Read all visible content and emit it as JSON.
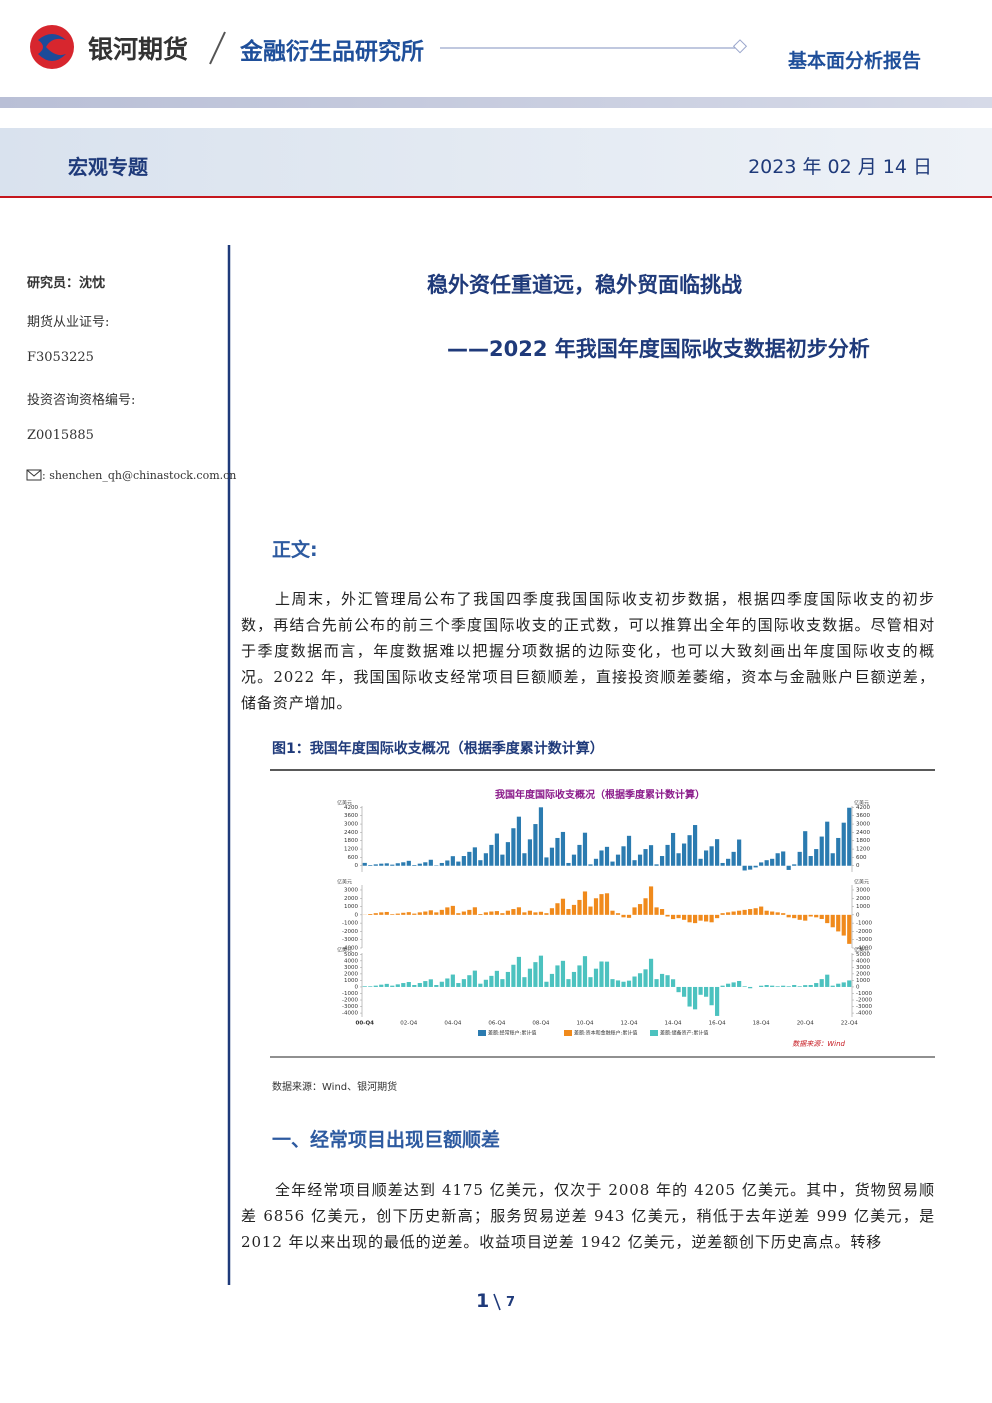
{
  "header": {
    "company": "银河期货",
    "institute": "金融衍生品研究所",
    "report_type": "基本面分析报告"
  },
  "band": {
    "category": "宏观专题",
    "date": "2023 年 02 月 14 日"
  },
  "sidebar": {
    "researcher": "研究员：沈忱",
    "license_label": "期货从业证号:",
    "license": "F3053225",
    "advisor_label": "投资咨询资格编号:",
    "advisor": "Z0015885",
    "email": ": shenchen_qh@chinastock.com.cn"
  },
  "document": {
    "title": "稳外资任重道远，稳外贸面临挑战",
    "subtitle": "——2022 年我国年度国际收支数据初步分析",
    "section_label": "正文:",
    "paragraphs": [
      "上周末，外汇管理局公布了我国四季度我国国际收支初步数据，根据四季度国际收支的初步数，再结合先前公布的前三个季度国际收支的正式数，可以推算出全年的国际收支数据。尽管相对于季度数据而言，年度数据难以把握分项数据的边际变化，也可以大致刻画出年度国际收支的概况。2022 年，我国国际收支经常项目巨额顺差，直接投资顺差萎缩，资本与金融账户巨额逆差，储备资产增加。"
    ],
    "figure_caption": "图1：我国年度国际收支概况（根据季度累计数计算）",
    "figure_source": "数据来源：Wind、银河期货",
    "heading": "一、经常项目出现巨额顺差",
    "paragraphs_2": [
      "全年经常项目顺差达到 4175 亿美元，仅次于 2008 年的 4205 亿美元。其中，货物贸易顺差 6856 亿美元，创下历史新高；服务贸易逆差 943 亿美元，稍低于去年逆差 999 亿美元，是 2012 年以来出现的最低的逆差。收益项目逆差 1942 亿美元，逆差额创下历史高点。转移"
    ]
  },
  "page": {
    "current": 1,
    "total": 7
  },
  "chart_data": [
    {
      "type": "bar",
      "title": "我国年度国际收支概况（根据季度累计数计算）",
      "unit": "亿美元",
      "ylim": [
        -450,
        4300
      ],
      "yticks": [
        0,
        600,
        1200,
        1800,
        2400,
        3000,
        3600,
        4200
      ],
      "series": [
        {
          "name": "差额:经常账户:累计值",
          "color": "#2b7bb0",
          "values": [
            205,
            50,
            100,
            150,
            174,
            80,
            180,
            250,
            354,
            50,
            150,
            250,
            431,
            30,
            200,
            380,
            689,
            300,
            700,
            1000,
            1324,
            400,
            900,
            1500,
            2318,
            800,
            1700,
            2700,
            3532,
            900,
            1900,
            3000,
            4205,
            600,
            1300,
            2000,
            2433,
            200,
            800,
            1500,
            2378,
            100,
            500,
            1100,
            1361,
            300,
            800,
            1400,
            2154,
            400,
            800,
            1200,
            1482,
            100,
            700,
            1500,
            2360,
            900,
            1600,
            2200,
            2930,
            500,
            1100,
            1400,
            1913,
            200,
            500,
            1000,
            1887,
            -340,
            -280,
            -120,
            241,
            400,
            500,
            900,
            1029,
            -300,
            100,
            1000,
            2488,
            700,
            1200,
            2100,
            3173,
            900,
            2000,
            3100,
            4175
          ]
        }
      ]
    },
    {
      "type": "bar",
      "unit": "亿美元",
      "ylim": [
        -4000,
        3600
      ],
      "yticks": [
        -4000,
        -3000,
        -2000,
        -1000,
        0,
        1000,
        2000,
        3000
      ],
      "series": [
        {
          "name": "差额:资本和金融账户:累计值",
          "color": "#f08a1c",
          "values": [
            20,
            100,
            200,
            300,
            348,
            80,
            150,
            250,
            323,
            150,
            300,
            400,
            549,
            300,
            600,
            900,
            1082,
            200,
            400,
            600,
            912,
            100,
            300,
            400,
            453,
            200,
            500,
            700,
            911,
            300,
            500,
            300,
            371,
            200,
            800,
            1400,
            1945,
            700,
            1200,
            1800,
            2822,
            1000,
            2000,
            2500,
            2600,
            500,
            200,
            -300,
            -360,
            900,
            1300,
            2000,
            3430,
            900,
            700,
            -200,
            -514,
            -400,
            -600,
            -900,
            -1000,
            -700,
            -800,
            -900,
            -400,
            200,
            300,
            400,
            500,
            600,
            700,
            800,
            1000,
            500,
            400,
            300,
            200,
            -300,
            -400,
            -600,
            -700,
            -200,
            -300,
            -500,
            -1000,
            -1500,
            -2000,
            -2500,
            -3500
          ]
        }
      ]
    },
    {
      "type": "bar",
      "unit": "亿美元",
      "ylim": [
        -4600,
        5200
      ],
      "yticks": [
        -4000,
        -3000,
        -2000,
        -1000,
        0,
        1000,
        2000,
        3000,
        4000,
        5000
      ],
      "categories": [
        "00-Q4",
        null,
        null,
        null,
        null,
        null,
        null,
        null,
        "02-Q4",
        null,
        null,
        null,
        null,
        null,
        null,
        null,
        "04-Q4",
        null,
        null,
        null,
        null,
        null,
        null,
        null,
        "06-Q4",
        null,
        null,
        null,
        null,
        null,
        null,
        null,
        "08-Q4",
        null,
        null,
        null,
        null,
        null,
        null,
        null,
        "10-Q4",
        null,
        null,
        null,
        null,
        null,
        null,
        null,
        "12-Q4",
        null,
        null,
        null,
        null,
        null,
        null,
        null,
        "14-Q4",
        null,
        null,
        null,
        null,
        null,
        null,
        null,
        "16-Q4",
        null,
        null,
        null,
        null,
        null,
        null,
        null,
        "18-Q4",
        null,
        null,
        null,
        null,
        null,
        null,
        null,
        "20-Q4",
        null,
        null,
        null,
        null,
        null,
        null,
        null,
        "22-Q4"
      ],
      "series": [
        {
          "name": "差额:储备资产:累计值",
          "color": "#4cc2bf",
          "values": [
            105,
            100,
            200,
            350,
            473,
            200,
            400,
            600,
            755,
            300,
            600,
            900,
            1170,
            300,
            800,
            1300,
            1900,
            600,
            1200,
            1800,
            2506,
            500,
            1100,
            1700,
            2470,
            1200,
            2300,
            3400,
            4607,
            1500,
            2800,
            3800,
            4795,
            800,
            2000,
            3300,
            4003,
            1200,
            2300,
            3300,
            4717,
            1500,
            2800,
            3900,
            3878,
            1200,
            1000,
            800,
            966,
            1600,
            2100,
            2700,
            4314,
            1200,
            2000,
            1800,
            1178,
            -800,
            -1500,
            -3000,
            -3429,
            -1200,
            -1500,
            -2800,
            -4437,
            200,
            500,
            700,
            915,
            100,
            -200,
            0,
            189,
            300,
            200,
            100,
            193,
            100,
            300,
            100,
            280,
            300,
            600,
            1200,
            1882,
            200,
            500,
            700,
            1000
          ]
        }
      ],
      "source": "数据来源：Wind"
    }
  ]
}
